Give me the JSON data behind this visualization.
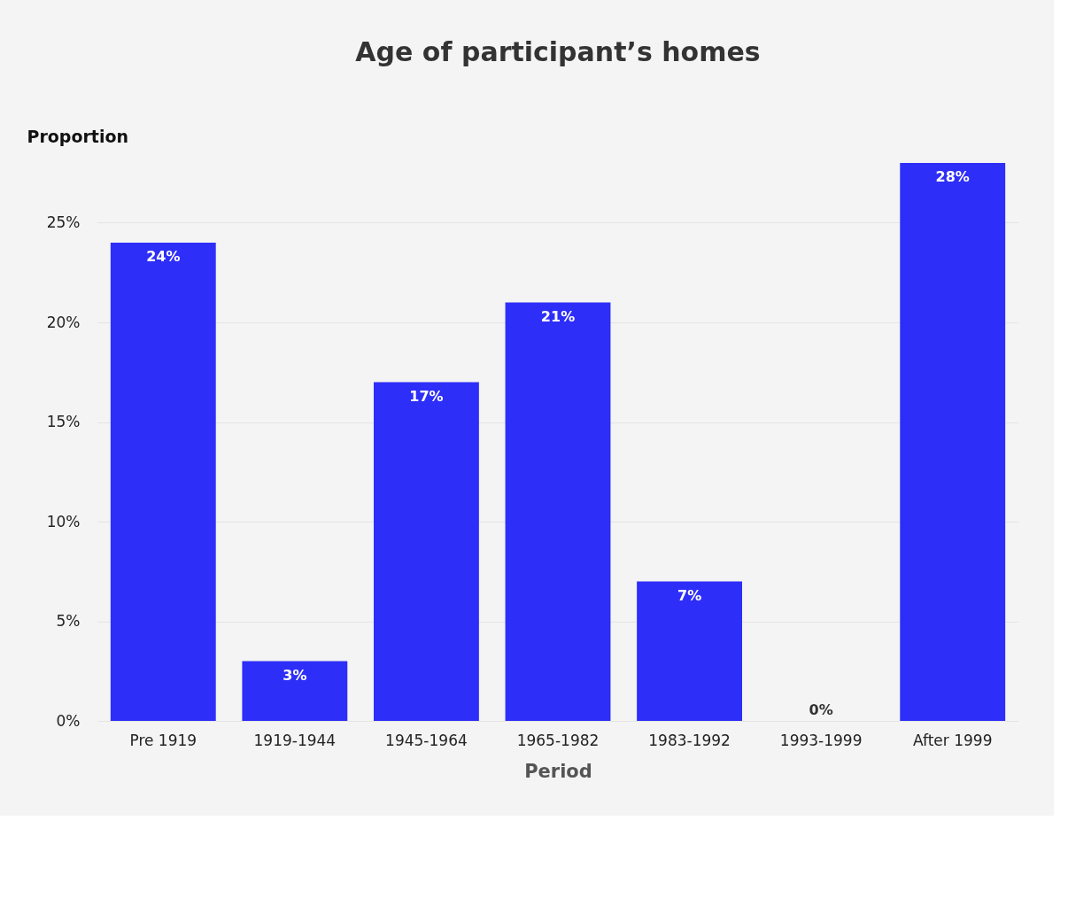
{
  "chart_data": {
    "type": "bar",
    "title": "Age of participant’s homes",
    "xlabel": "Period",
    "ylabel": "Proportion",
    "categories": [
      "Pre 1919",
      "1919-1944",
      "1945-1964",
      "1965-1982",
      "1983-1992",
      "1993-1999",
      "After 1999"
    ],
    "values": [
      24,
      3,
      17,
      21,
      7,
      0,
      28
    ],
    "value_labels": [
      "24%",
      "3%",
      "17%",
      "21%",
      "7%",
      "0%",
      "28%"
    ],
    "color": "#2e2ef9",
    "ylim": [
      0,
      28
    ],
    "yticks": [
      {
        "value": 0,
        "label": "0%"
      },
      {
        "value": 5,
        "label": "5%"
      },
      {
        "value": 10,
        "label": "10%"
      },
      {
        "value": 15,
        "label": "15%"
      },
      {
        "value": 20,
        "label": "20%"
      },
      {
        "value": 25,
        "label": "25%"
      }
    ],
    "grid": "y"
  }
}
